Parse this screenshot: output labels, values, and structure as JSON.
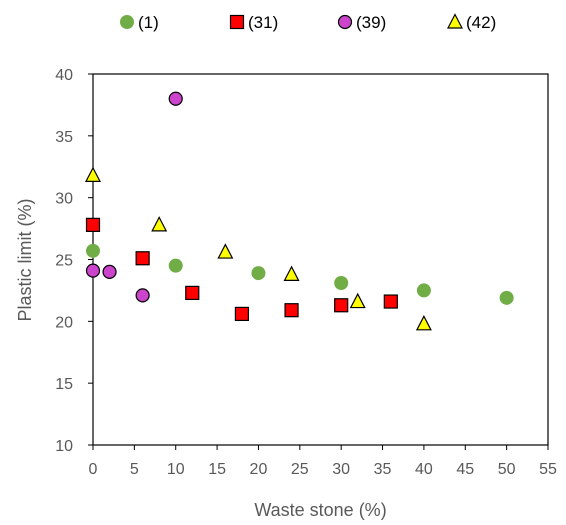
{
  "chart_data": {
    "type": "scatter",
    "xlabel": "Waste stone (%)",
    "ylabel": "Plastic limit (%)",
    "xlim": [
      0,
      55
    ],
    "ylim": [
      10,
      40
    ],
    "x_ticks": [
      "0",
      "5",
      "10",
      "15",
      "20",
      "25",
      "30",
      "35",
      "40",
      "45",
      "50",
      "55"
    ],
    "y_ticks": [
      "10",
      "15",
      "20",
      "25",
      "30",
      "35",
      "40"
    ],
    "grid": false,
    "legend_position": "top",
    "series": [
      {
        "name": "(1)",
        "marker": "circle",
        "color": "#70ad47",
        "points": [
          [
            0,
            25.7
          ],
          [
            10,
            24.5
          ],
          [
            20,
            23.9
          ],
          [
            30,
            23.1
          ],
          [
            40,
            22.5
          ],
          [
            50,
            21.9
          ]
        ]
      },
      {
        "name": "(31)",
        "marker": "square",
        "color": "#ff0000",
        "points": [
          [
            0,
            27.8
          ],
          [
            6,
            25.1
          ],
          [
            12,
            22.3
          ],
          [
            18,
            20.6
          ],
          [
            24,
            20.9
          ],
          [
            30,
            21.3
          ],
          [
            36,
            21.6
          ]
        ]
      },
      {
        "name": "(39)",
        "marker": "circle",
        "color": "#cc44cc",
        "points": [
          [
            0,
            24.1
          ],
          [
            2,
            24.0
          ],
          [
            6,
            22.1
          ],
          [
            10,
            38.0
          ]
        ]
      },
      {
        "name": "(42)",
        "marker": "triangle",
        "color": "#ffff00",
        "points": [
          [
            0,
            31.8
          ],
          [
            8,
            27.8
          ],
          [
            16,
            25.6
          ],
          [
            24,
            23.8
          ],
          [
            32,
            21.6
          ],
          [
            40,
            19.8
          ]
        ]
      }
    ]
  }
}
